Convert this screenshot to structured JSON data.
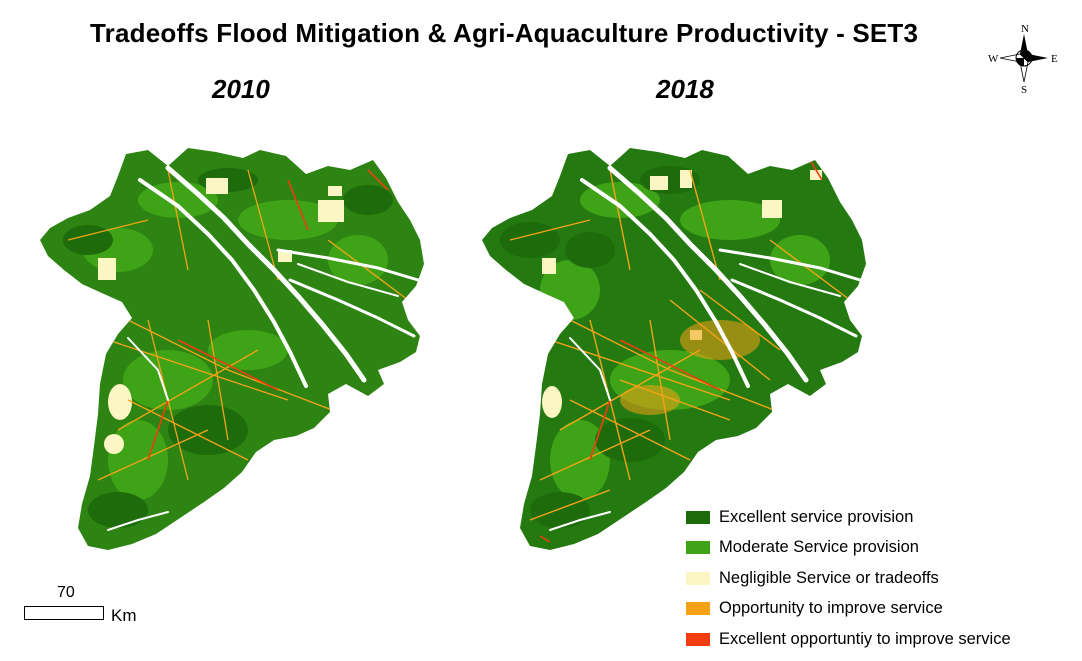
{
  "title": "Tradeoffs Flood Mitigation & Agri-Aquaculture Productivity - SET3",
  "panels": [
    {
      "year": "2010"
    },
    {
      "year": "2018"
    }
  ],
  "compass": {
    "n": "N",
    "s": "S",
    "e": "E",
    "w": "W"
  },
  "scalebar": {
    "value": "70",
    "unit": "Km"
  },
  "legend": [
    {
      "label": "Excellent service provision",
      "color": "#1d6b0a"
    },
    {
      "label": "Moderate Service provision",
      "color": "#3fa317"
    },
    {
      "label": "Negligible Service or tradeoffs",
      "color": "#fbf6c3"
    },
    {
      "label": "Opportunity to improve service",
      "color": "#f5a216"
    },
    {
      "label": "Excellent opportuntiy to improve service",
      "color": "#f03d10"
    }
  ]
}
